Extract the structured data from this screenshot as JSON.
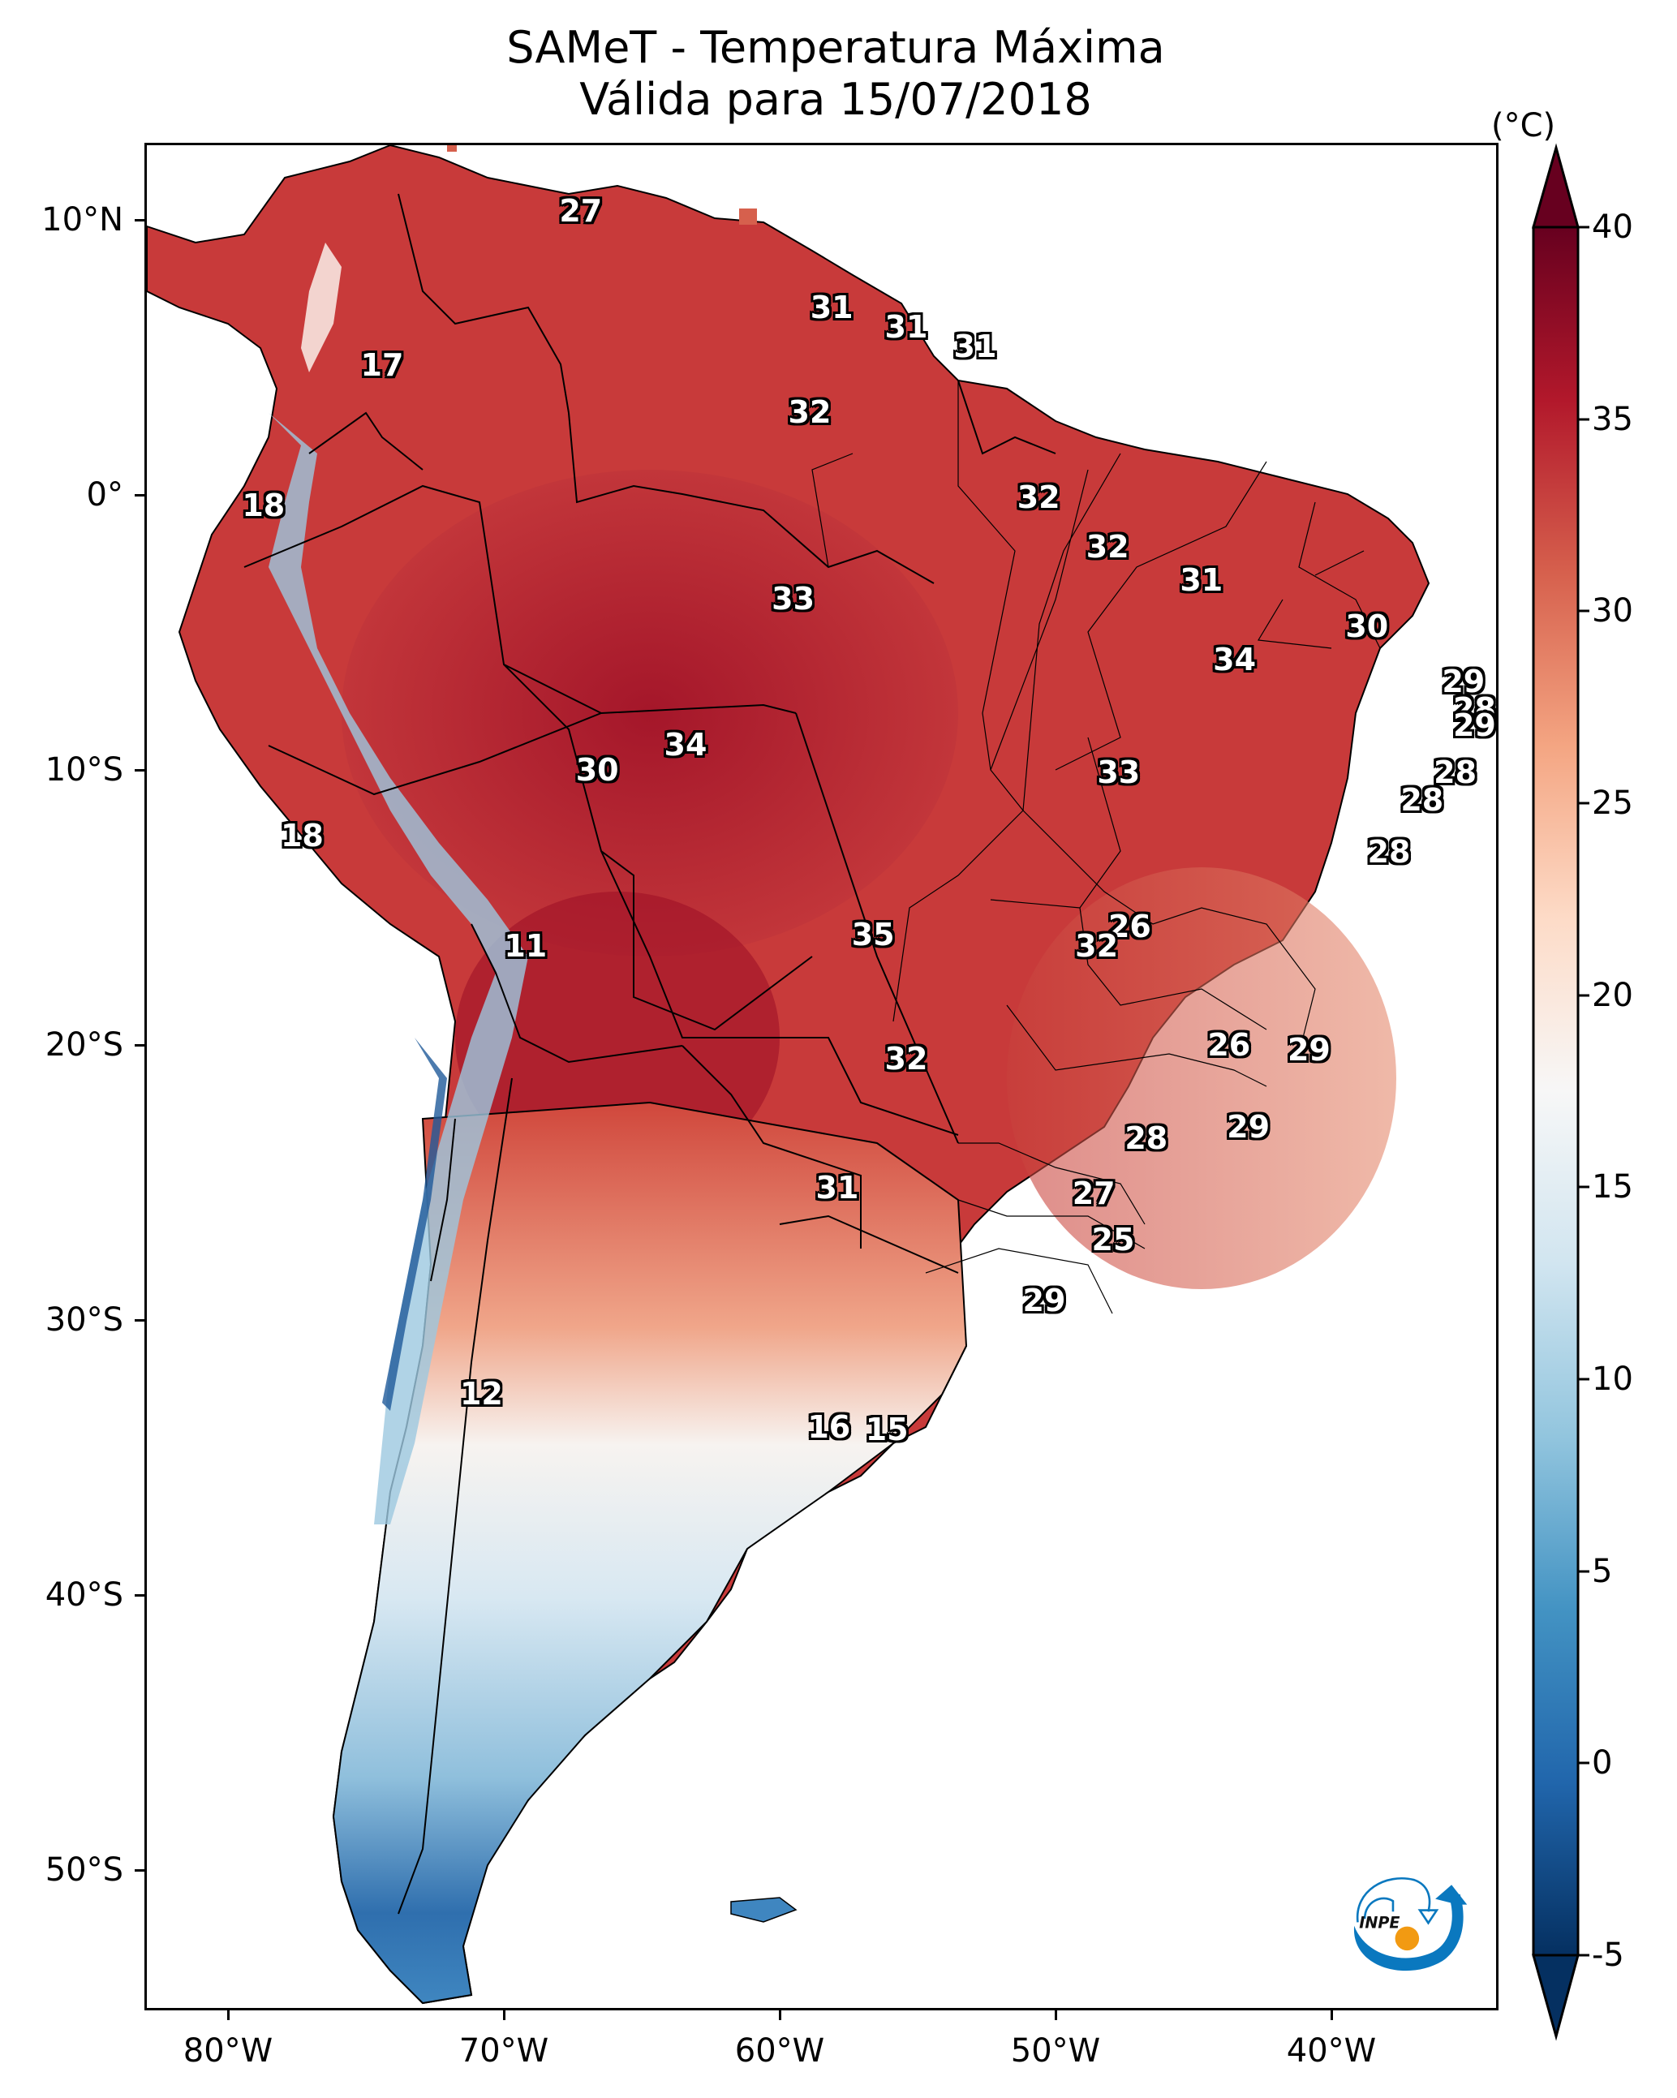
{
  "title": {
    "line1": "SAMeT - Temperatura Máxima",
    "line2": "Válida para 15/07/2018"
  },
  "colorbar": {
    "unit": "(°C)",
    "min": -5,
    "max": 40,
    "ticks": [
      "40",
      "35",
      "30",
      "25",
      "20",
      "15",
      "10",
      "5",
      "0",
      "-5"
    ],
    "tick_values": [
      40,
      35,
      30,
      25,
      20,
      15,
      10,
      5,
      0,
      -5
    ],
    "extend": "both",
    "colormap": "RdBu_r",
    "colors": [
      "#053061",
      "#2166ac",
      "#4393c3",
      "#92c5de",
      "#d1e5f0",
      "#f7f7f7",
      "#fddbc7",
      "#f4a582",
      "#d6604d",
      "#b2182b",
      "#67001f"
    ]
  },
  "axes": {
    "lat_ticks": [
      "10°N",
      "0°",
      "10°S",
      "20°S",
      "30°S",
      "40°S",
      "50°S"
    ],
    "lat_values": [
      10,
      0,
      -10,
      -20,
      -30,
      -40,
      -50
    ],
    "lon_ticks": [
      "80°W",
      "70°W",
      "60°W",
      "50°W",
      "40°W"
    ],
    "lon_values": [
      -80,
      -70,
      -60,
      -50,
      -40
    ],
    "lon_range": [
      -83,
      -34
    ],
    "lat_range": [
      -56,
      13
    ]
  },
  "chart_data": {
    "type": "heatmap",
    "title": "SAMeT - Temperatura Máxima\nVálida para 15/07/2018",
    "xlabel": "",
    "ylabel": "",
    "colorbar_label": "(°C)",
    "clim": [
      -5,
      40
    ],
    "annotations": [
      {
        "text": "27",
        "lon": -67.3,
        "lat": 10.4
      },
      {
        "text": "17",
        "lon": -74.5,
        "lat": 4.8
      },
      {
        "text": "31",
        "lon": -58.2,
        "lat": 6.9
      },
      {
        "text": "31",
        "lon": -55.5,
        "lat": 6.2
      },
      {
        "text": "31",
        "lon": -53.0,
        "lat": 5.5
      },
      {
        "text": "32",
        "lon": -59.0,
        "lat": 3.1
      },
      {
        "text": "18",
        "lon": -78.8,
        "lat": -0.3
      },
      {
        "text": "32",
        "lon": -50.7,
        "lat": 0.0
      },
      {
        "text": "32",
        "lon": -48.2,
        "lat": -1.8
      },
      {
        "text": "33",
        "lon": -59.6,
        "lat": -3.7
      },
      {
        "text": "31",
        "lon": -44.8,
        "lat": -3.0
      },
      {
        "text": "30",
        "lon": -38.8,
        "lat": -4.7
      },
      {
        "text": "34",
        "lon": -43.6,
        "lat": -5.9
      },
      {
        "text": "29",
        "lon": -35.3,
        "lat": -6.7
      },
      {
        "text": "28",
        "lon": -34.9,
        "lat": -7.7
      },
      {
        "text": "29",
        "lon": -34.9,
        "lat": -8.3
      },
      {
        "text": "34",
        "lon": -63.5,
        "lat": -9.0
      },
      {
        "text": "30",
        "lon": -66.7,
        "lat": -9.9
      },
      {
        "text": "28",
        "lon": -35.6,
        "lat": -10.0
      },
      {
        "text": "33",
        "lon": -47.8,
        "lat": -10.0
      },
      {
        "text": "28",
        "lon": -36.8,
        "lat": -11.0
      },
      {
        "text": "18",
        "lon": -77.4,
        "lat": -12.3
      },
      {
        "text": "28",
        "lon": -38.0,
        "lat": -12.9
      },
      {
        "text": "26",
        "lon": -47.4,
        "lat": -15.6
      },
      {
        "text": "11",
        "lon": -69.3,
        "lat": -16.3
      },
      {
        "text": "35",
        "lon": -56.7,
        "lat": -15.9
      },
      {
        "text": "32",
        "lon": -48.6,
        "lat": -16.3
      },
      {
        "text": "26",
        "lon": -43.8,
        "lat": -19.9
      },
      {
        "text": "29",
        "lon": -40.9,
        "lat": -20.1
      },
      {
        "text": "32",
        "lon": -55.5,
        "lat": -20.4
      },
      {
        "text": "29",
        "lon": -43.1,
        "lat": -22.9
      },
      {
        "text": "28",
        "lon": -46.8,
        "lat": -23.3
      },
      {
        "text": "31",
        "lon": -58.0,
        "lat": -25.1
      },
      {
        "text": "27",
        "lon": -48.7,
        "lat": -25.3
      },
      {
        "text": "25",
        "lon": -48.0,
        "lat": -27.0
      },
      {
        "text": "29",
        "lon": -50.5,
        "lat": -29.2
      },
      {
        "text": "12",
        "lon": -70.9,
        "lat": -32.6
      },
      {
        "text": "16",
        "lon": -58.3,
        "lat": -33.8
      },
      {
        "text": "15",
        "lon": -56.2,
        "lat": -33.9
      }
    ]
  },
  "logo": {
    "text": "INPE",
    "arrow_color": "#0a78bf",
    "sun_color": "#f29a12"
  }
}
